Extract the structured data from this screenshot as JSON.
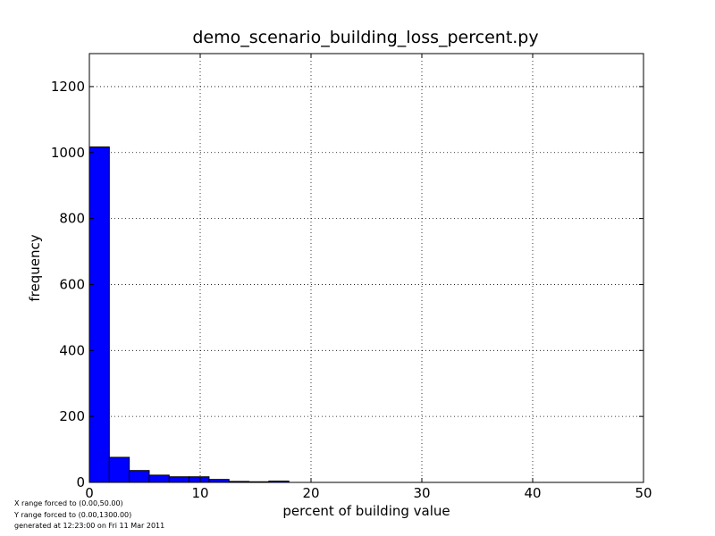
{
  "chart_data": {
    "type": "bar",
    "title": "demo_scenario_building_loss_percent.py",
    "xlabel": "percent of building value",
    "ylabel": "frequency",
    "xlim": [
      0,
      50
    ],
    "ylim": [
      0,
      1300
    ],
    "x_ticks": [
      0,
      10,
      20,
      30,
      40,
      50
    ],
    "y_ticks": [
      0,
      200,
      400,
      600,
      800,
      1000,
      1200
    ],
    "grid": true,
    "bar_color": "#0000ff",
    "bin_edges": [
      0,
      1.8,
      3.6,
      5.4,
      7.2,
      9.0,
      10.8,
      12.6,
      14.4,
      16.2,
      18.0
    ],
    "values": [
      1017,
      76,
      36,
      22,
      17,
      17,
      9,
      3,
      2,
      4
    ]
  },
  "footnotes": {
    "x_range": "X range forced to (0.00,50.00)",
    "y_range": "Y range forced to (0.00,1300.00)",
    "generated": "generated at 12:23:00 on Fri 11 Mar 2011"
  }
}
